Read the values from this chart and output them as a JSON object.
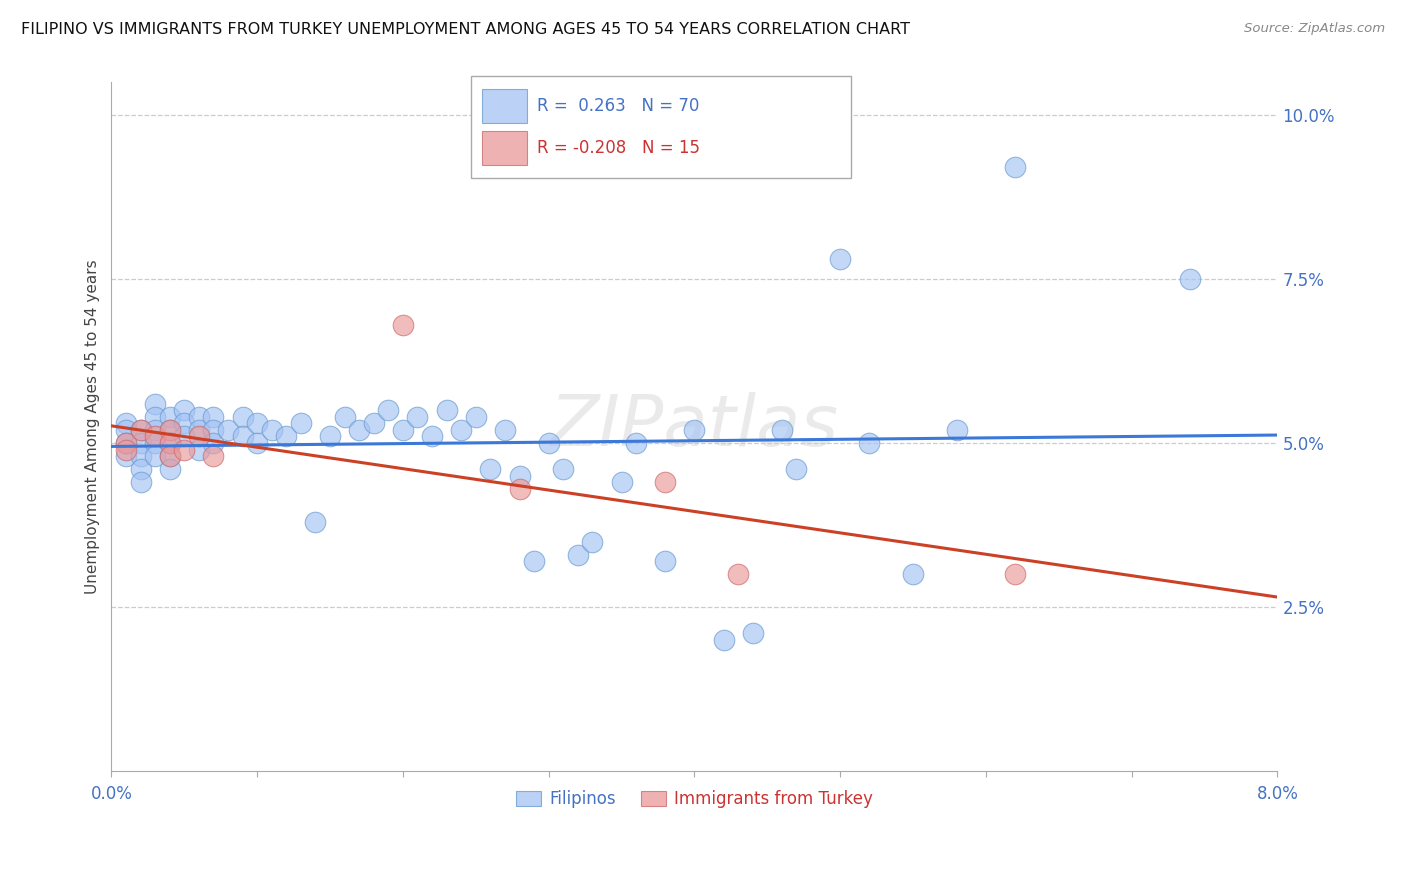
{
  "title": "FILIPINO VS IMMIGRANTS FROM TURKEY UNEMPLOYMENT AMONG AGES 45 TO 54 YEARS CORRELATION CHART",
  "source": "Source: ZipAtlas.com",
  "ylabel": "Unemployment Among Ages 45 to 54 years",
  "xlim": [
    0.0,
    0.08
  ],
  "ylim": [
    0.0,
    0.105
  ],
  "filipinos_color": "#a4c2f4",
  "turkey_color": "#ea9999",
  "blue_line_color": "#3c78d8",
  "pink_line_color": "#cc4125",
  "filipinos_x": [
    0.001,
    0.001,
    0.001,
    0.001,
    0.002,
    0.002,
    0.002,
    0.002,
    0.002,
    0.003,
    0.003,
    0.003,
    0.003,
    0.003,
    0.004,
    0.004,
    0.004,
    0.004,
    0.004,
    0.005,
    0.005,
    0.005,
    0.006,
    0.006,
    0.006,
    0.007,
    0.007,
    0.007,
    0.008,
    0.009,
    0.009,
    0.01,
    0.01,
    0.011,
    0.012,
    0.013,
    0.014,
    0.015,
    0.016,
    0.017,
    0.018,
    0.019,
    0.02,
    0.021,
    0.022,
    0.023,
    0.024,
    0.025,
    0.026,
    0.027,
    0.028,
    0.029,
    0.03,
    0.031,
    0.032,
    0.033,
    0.035,
    0.036,
    0.038,
    0.04,
    0.042,
    0.044,
    0.046,
    0.047,
    0.05,
    0.052,
    0.055,
    0.058,
    0.062,
    0.074
  ],
  "filipinos_y": [
    0.053,
    0.052,
    0.05,
    0.048,
    0.052,
    0.05,
    0.048,
    0.046,
    0.044,
    0.056,
    0.054,
    0.052,
    0.05,
    0.048,
    0.054,
    0.052,
    0.05,
    0.048,
    0.046,
    0.055,
    0.053,
    0.051,
    0.054,
    0.052,
    0.049,
    0.054,
    0.052,
    0.05,
    0.052,
    0.054,
    0.051,
    0.053,
    0.05,
    0.052,
    0.051,
    0.053,
    0.038,
    0.051,
    0.054,
    0.052,
    0.053,
    0.055,
    0.052,
    0.054,
    0.051,
    0.055,
    0.052,
    0.054,
    0.046,
    0.052,
    0.045,
    0.032,
    0.05,
    0.046,
    0.033,
    0.035,
    0.044,
    0.05,
    0.032,
    0.052,
    0.02,
    0.021,
    0.052,
    0.046,
    0.078,
    0.05,
    0.03,
    0.052,
    0.092,
    0.075
  ],
  "turkey_x": [
    0.001,
    0.001,
    0.002,
    0.003,
    0.004,
    0.004,
    0.004,
    0.005,
    0.006,
    0.007,
    0.02,
    0.028,
    0.038,
    0.043,
    0.062
  ],
  "turkey_y": [
    0.05,
    0.049,
    0.052,
    0.051,
    0.052,
    0.05,
    0.048,
    0.049,
    0.051,
    0.048,
    0.068,
    0.043,
    0.044,
    0.03,
    0.03
  ]
}
